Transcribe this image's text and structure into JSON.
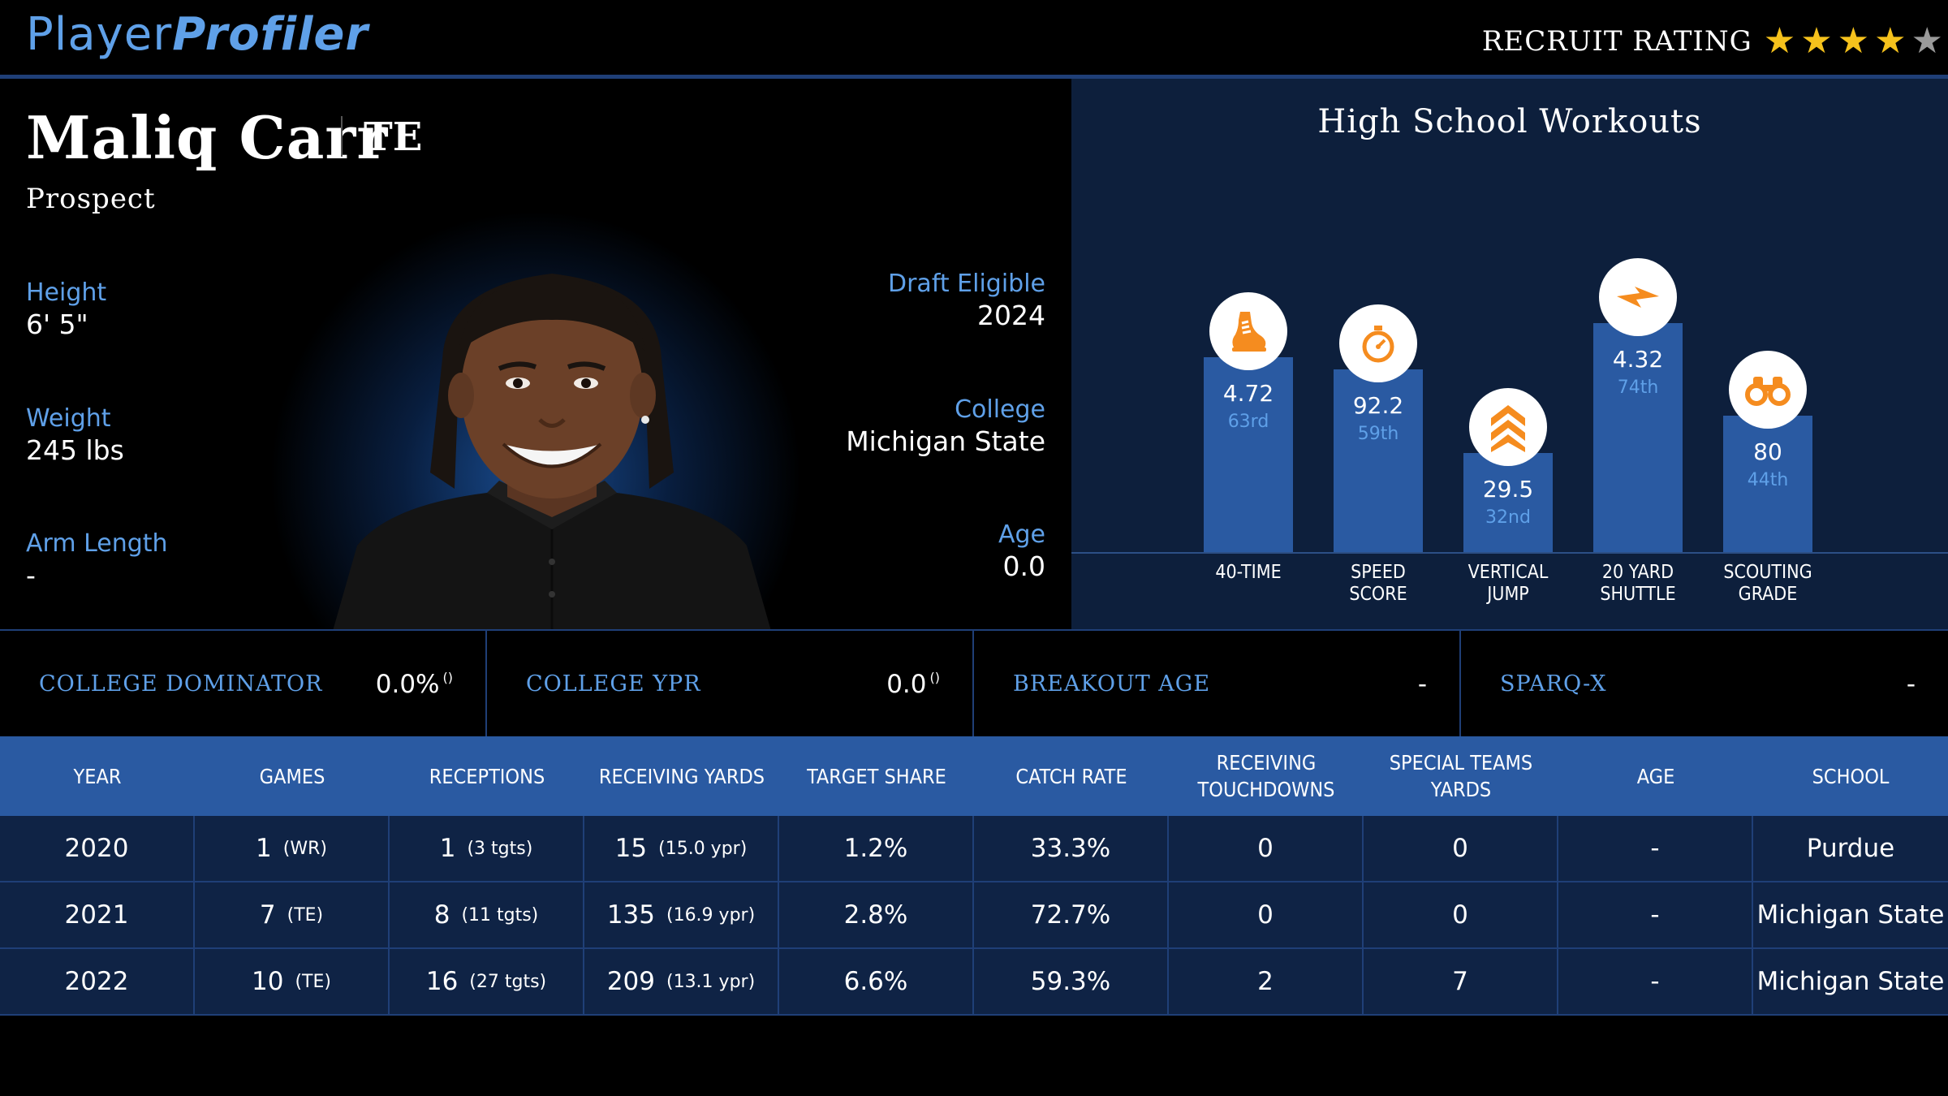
{
  "header": {
    "logo_part1": "Player",
    "logo_part2": "Profiler",
    "rating_label": "RECRUIT RATING",
    "stars_filled": 4,
    "stars_total": 5
  },
  "profile": {
    "name": "Maliq Carr",
    "position": "TE",
    "status": "Prospect",
    "height_label": "Height",
    "height": "6' 5\"",
    "weight_label": "Weight",
    "weight": "245 lbs",
    "arm_label": "Arm Length",
    "arm": "-",
    "draft_label": "Draft Eligible",
    "draft": "2024",
    "college_label": "College",
    "college": "Michigan State",
    "age_label": "Age",
    "age": "0.0"
  },
  "workouts": {
    "title": "High School Workouts",
    "items": [
      {
        "label1": "40-TIME",
        "label2": "",
        "value": "4.72",
        "pct": "63rd",
        "pct_num": 63,
        "icon": "running-shoe-icon"
      },
      {
        "label1": "SPEED",
        "label2": "SCORE",
        "value": "92.2",
        "pct": "59th",
        "pct_num": 59,
        "icon": "stopwatch-icon"
      },
      {
        "label1": "VERTICAL",
        "label2": "JUMP",
        "value": "29.5",
        "pct": "32nd",
        "pct_num": 32,
        "icon": "chevrons-up-icon"
      },
      {
        "label1": "20 YARD",
        "label2": "SHUTTLE",
        "value": "4.32",
        "pct": "74th",
        "pct_num": 74,
        "icon": "lightning-icon"
      },
      {
        "label1": "SCOUTING",
        "label2": "GRADE",
        "value": "80",
        "pct": "44th",
        "pct_num": 44,
        "icon": "binoculars-icon"
      }
    ],
    "colors": {
      "bar": "#2a5aa2",
      "icon": "#f58c1f"
    }
  },
  "metrics": [
    {
      "label": "COLLEGE DOMINATOR",
      "value": "0.0%",
      "rank": "()"
    },
    {
      "label": "COLLEGE YPR",
      "value": "0.0",
      "rank": "()"
    },
    {
      "label": "BREAKOUT AGE",
      "value": "-",
      "rank": ""
    },
    {
      "label": "SPARQ-X",
      "value": "-",
      "rank": ""
    }
  ],
  "table": {
    "headers": [
      [
        "YEAR"
      ],
      [
        "GAMES"
      ],
      [
        "RECEPTIONS"
      ],
      [
        "RECEIVING YARDS"
      ],
      [
        "TARGET SHARE"
      ],
      [
        "CATCH RATE"
      ],
      [
        "RECEIVING",
        "TOUCHDOWNS"
      ],
      [
        "SPECIAL TEAMS",
        "YARDS"
      ],
      [
        "AGE"
      ],
      [
        "SCHOOL"
      ]
    ],
    "rows": [
      {
        "year": "2020",
        "games": "1",
        "games_sub": "(WR)",
        "rec": "1",
        "rec_sub": "(3 tgts)",
        "yds": "15",
        "yds_sub": "(15.0 ypr)",
        "share": "1.2%",
        "catch": "33.3%",
        "td": "0",
        "st": "0",
        "age": "-",
        "school": "Purdue"
      },
      {
        "year": "2021",
        "games": "7",
        "games_sub": "(TE)",
        "rec": "8",
        "rec_sub": "(11 tgts)",
        "yds": "135",
        "yds_sub": "(16.9 ypr)",
        "share": "2.8%",
        "catch": "72.7%",
        "td": "0",
        "st": "0",
        "age": "-",
        "school": "Michigan State"
      },
      {
        "year": "2022",
        "games": "10",
        "games_sub": "(TE)",
        "rec": "16",
        "rec_sub": "(27 tgts)",
        "yds": "209",
        "yds_sub": "(13.1 ypr)",
        "share": "6.6%",
        "catch": "59.3%",
        "td": "2",
        "st": "7",
        "age": "-",
        "school": "Michigan State"
      }
    ]
  }
}
